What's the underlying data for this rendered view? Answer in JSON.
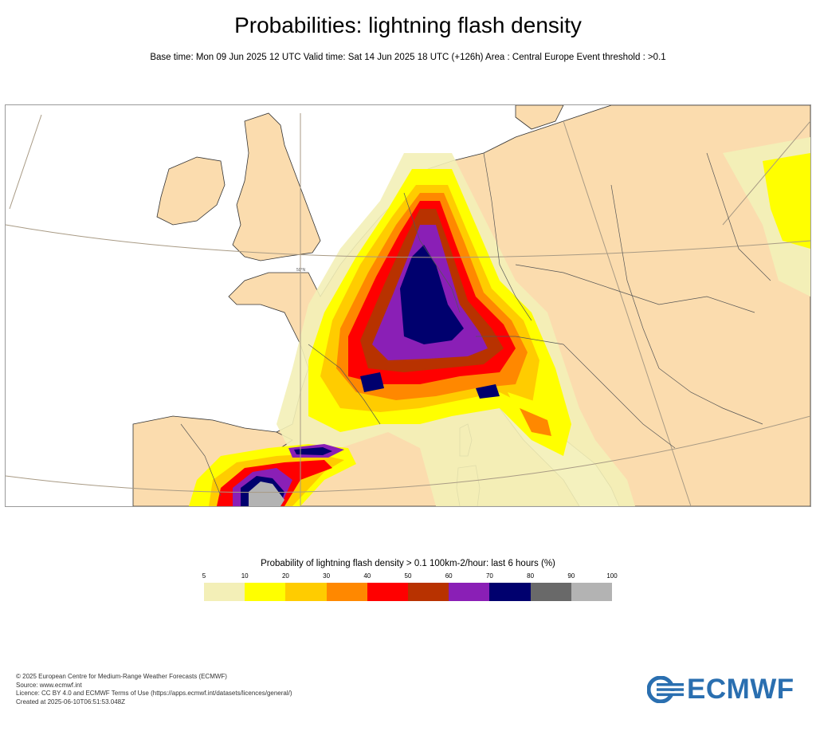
{
  "title": "Probabilities: lightning flash density",
  "subtitle": "Base time: Mon 09 Jun 2025 12 UTC Valid time: Sat 14 Jun 2025 18 UTC (+126h) Area : Central Europe Event threshold : >0.1",
  "map": {
    "lat_label": "50°N",
    "colors": {
      "land": "#fbdcae",
      "sea": "#ffffff",
      "coast": "#333333",
      "border": "#555555",
      "graticule": "#a89a84"
    }
  },
  "legend": {
    "title": "Probability of lightning flash density > 0.1 100km-2/hour: last 6 hours (%)",
    "ticks": [
      "5",
      "10",
      "20",
      "30",
      "40",
      "50",
      "60",
      "70",
      "80",
      "90",
      "100"
    ],
    "colors": [
      "#f3efb7",
      "#ffff00",
      "#ffcc00",
      "#ff8800",
      "#ff0000",
      "#b83200",
      "#8a1fb6",
      "#00006e",
      "#696969",
      "#b3b3b3"
    ]
  },
  "footer": {
    "line1": "© 2025 European Centre for Medium-Range Weather Forecasts (ECMWF)",
    "line2": "Source: www.ecmwf.int",
    "line3": "Licence: CC BY 4.0 and ECMWF Terms of Use (https://apps.ecmwf.int/datasets/licences/general/)",
    "line4": "Created at 2025-06-10T06:51:53.048Z"
  },
  "logo": {
    "text": "ECMWF",
    "icon": "ecmwf-logo-icon"
  }
}
